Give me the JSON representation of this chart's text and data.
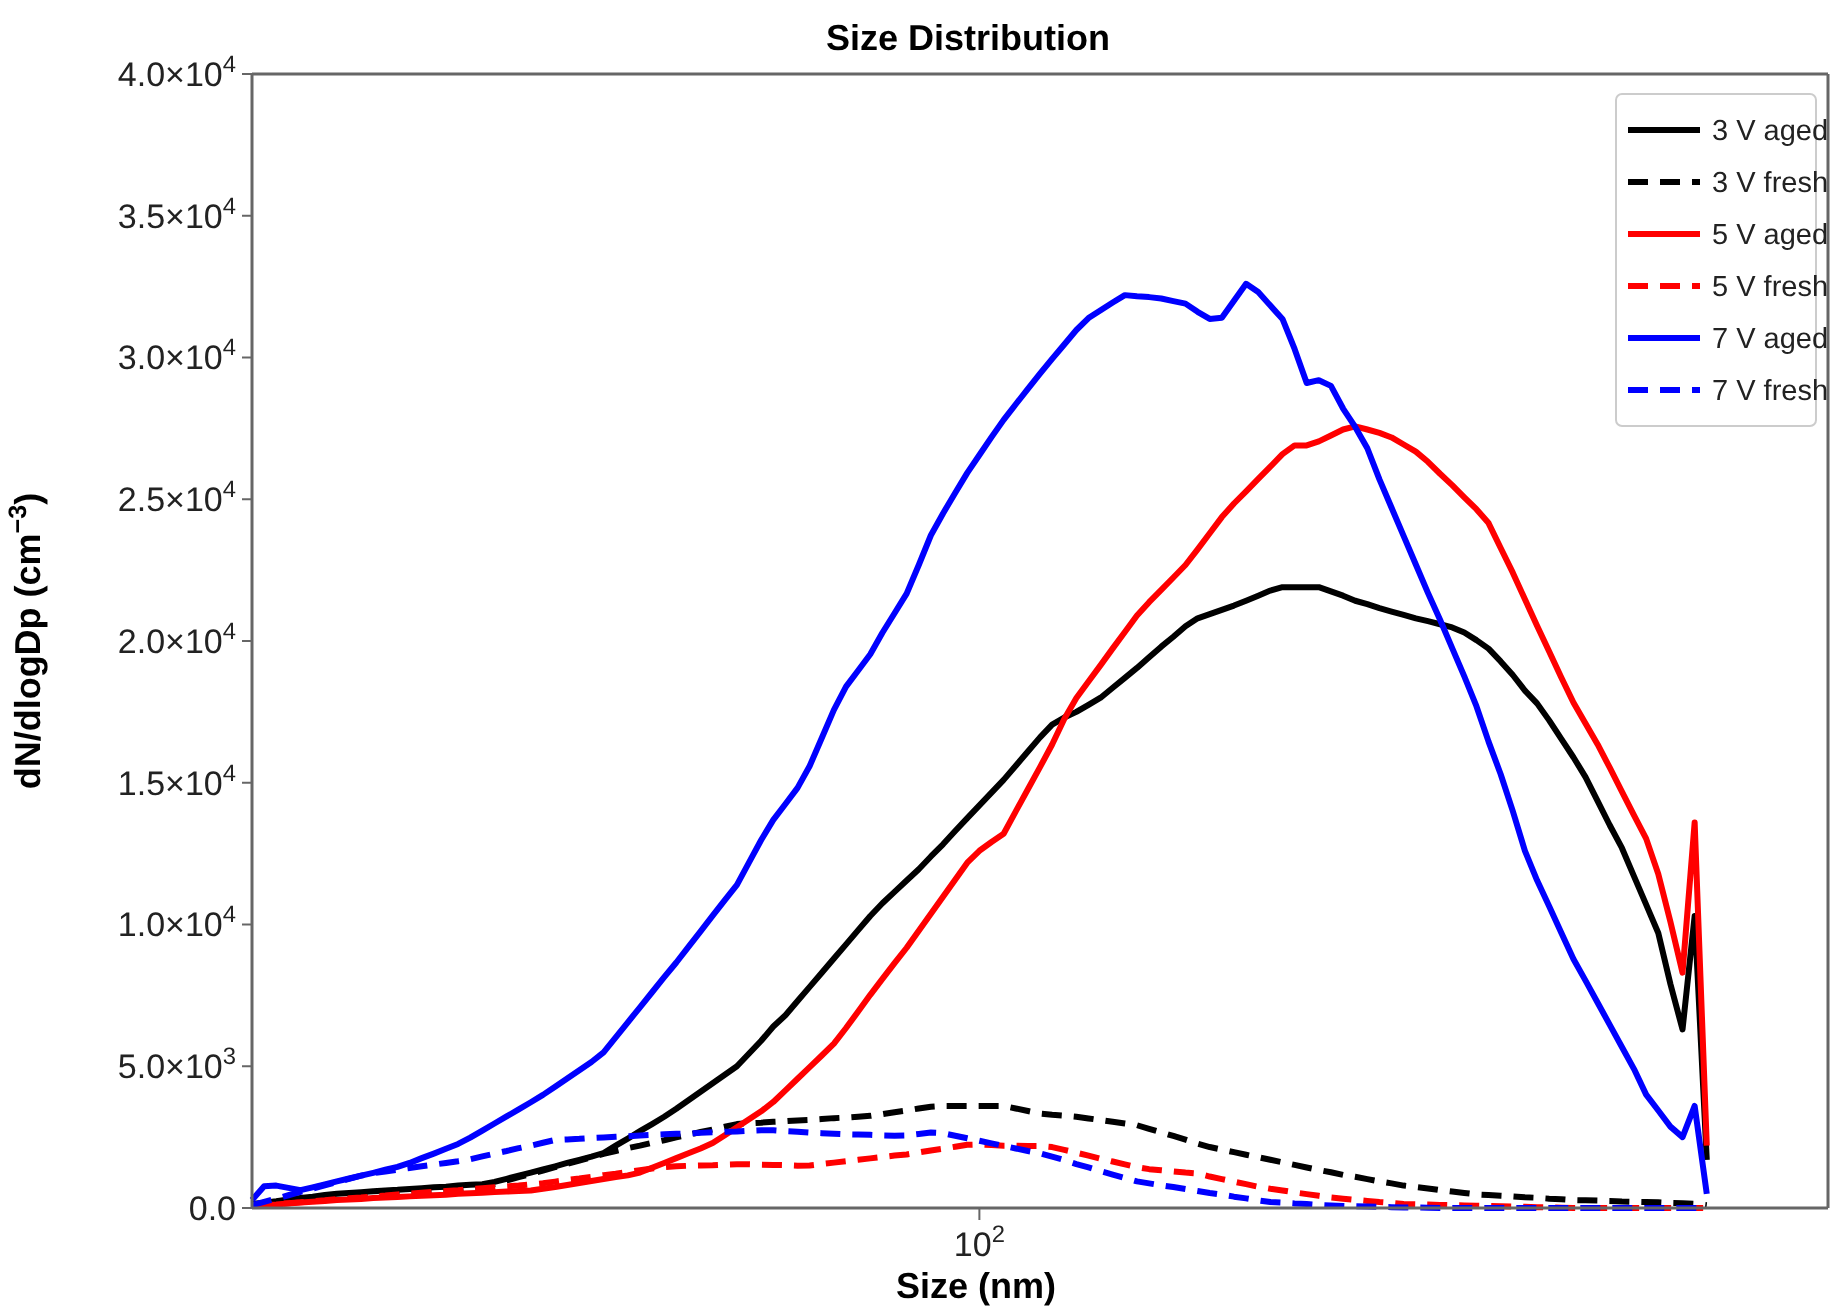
{
  "chart_data": {
    "type": "line",
    "title": "Size Distribution",
    "xlabel": "Size (nm)",
    "ylabel": "dN/dlogDp (cm$^{−3}$)",
    "categories": [
      null,
      null,
      null,
      null,
      null,
      null,
      null,
      null,
      null,
      null,
      null,
      null,
      null,
      null,
      null,
      null,
      null,
      null,
      null,
      null,
      null,
      null,
      null,
      null,
      null,
      null,
      null,
      null,
      null,
      null,
      null,
      null,
      null,
      null,
      null,
      null,
      null,
      null,
      null,
      null,
      null,
      null,
      null,
      null,
      null,
      null,
      null,
      null,
      null,
      null,
      null,
      null,
      null,
      null,
      null,
      null,
      null,
      null,
      null,
      null,
      "10$^{2}$",
      null,
      null,
      null,
      null,
      null,
      null,
      null,
      null,
      null,
      null,
      null,
      null,
      null,
      null,
      null,
      null,
      null,
      null,
      null,
      null,
      null,
      null,
      null,
      null,
      null,
      null,
      null,
      null,
      null,
      null,
      null,
      null,
      null,
      null,
      null,
      null,
      null,
      null,
      null,
      null,
      null,
      null,
      null,
      null,
      null,
      null,
      null,
      null,
      null,
      null,
      null,
      null,
      null,
      null,
      null,
      null,
      null,
      null,
      null,
      null,
      null,
      null,
      null,
      null,
      null,
      null,
      null,
      null,
      null,
      null
    ],
    "ylim": [
      0,
      40000
    ],
    "yticks": [
      {
        "value": 0,
        "label": "0.0"
      },
      {
        "value": 5000,
        "label": "5.0×10$^{3}$"
      },
      {
        "value": 10000,
        "label": "1.0×10$^{4}$"
      },
      {
        "value": 15000,
        "label": "1.5×10$^{4}$"
      },
      {
        "value": 20000,
        "label": "2.0×10$^{4}$"
      },
      {
        "value": 25000,
        "label": "2.5×10$^{4}$"
      },
      {
        "value": 30000,
        "label": "3.0×10$^{4}$"
      },
      {
        "value": 35000,
        "label": "3.5×10$^{4}$"
      },
      {
        "value": 40000,
        "label": "4.0×10$^{4}$"
      }
    ],
    "grid": false,
    "legend": "top right",
    "series": [
      {
        "name": "3 V aged",
        "color": "#000000",
        "line_style": "solid",
        "values": [
          140,
          190,
          240,
          300,
          350,
          400,
          460,
          500,
          530,
          560,
          590,
          620,
          640,
          670,
          700,
          730,
          750,
          790,
          820,
          840,
          920,
          1030,
          1140,
          1250,
          1360,
          1470,
          1590,
          1700,
          1810,
          1940,
          2200,
          2450,
          2710,
          2960,
          3220,
          3500,
          3800,
          4100,
          4400,
          4700,
          5000,
          5450,
          5900,
          6400,
          6800,
          7300,
          7800,
          8300,
          8800,
          9300,
          9800,
          10300,
          10750,
          11150,
          11550,
          11950,
          12400,
          12830,
          13300,
          13750,
          14200,
          14650,
          15100,
          15600,
          16100,
          16600,
          17050,
          17300,
          17500,
          17750,
          18000,
          18350,
          18700,
          19050,
          19430,
          19800,
          20150,
          20520,
          20800,
          20950,
          21100,
          21250,
          21420,
          21600,
          21780,
          21900,
          21900,
          21900,
          21900,
          21750,
          21600,
          21420,
          21300,
          21160,
          21040,
          20920,
          20800,
          20700,
          20590,
          20480,
          20300,
          20030,
          19730,
          19280,
          18800,
          18250,
          17800,
          17200,
          16550,
          15900,
          15200,
          14350,
          13500,
          12700,
          11700,
          10700,
          9700,
          7900,
          6300,
          10300,
          1700,
          null,
          null,
          null,
          null,
          null,
          null,
          null,
          null,
          null,
          null
        ]
      },
      {
        "name": "3 V fresh",
        "color": "#000000",
        "line_style": "dashed",
        "values": [
          100,
          130,
          170,
          200,
          230,
          260,
          300,
          330,
          370,
          400,
          440,
          470,
          510,
          540,
          580,
          620,
          650,
          690,
          730,
          760,
          850,
          970,
          1090,
          1200,
          1320,
          1440,
          1560,
          1670,
          1790,
          1910,
          2010,
          2110,
          2200,
          2300,
          2390,
          2490,
          2580,
          2680,
          2770,
          2870,
          2960,
          2990,
          3010,
          3040,
          3060,
          3090,
          3110,
          3140,
          3170,
          3190,
          3220,
          3250,
          3310,
          3380,
          3440,
          3510,
          3570,
          3600,
          3600,
          3600,
          3600,
          3600,
          3600,
          3510,
          3420,
          3330,
          3290,
          3260,
          3220,
          3160,
          3100,
          3040,
          2980,
          2920,
          2790,
          2670,
          2540,
          2410,
          2270,
          2150,
          2060,
          1970,
          1880,
          1790,
          1700,
          1610,
          1520,
          1430,
          1340,
          1260,
          1170,
          1100,
          1020,
          940,
          870,
          790,
          740,
          690,
          630,
          580,
          530,
          480,
          460,
          430,
          410,
          380,
          360,
          330,
          310,
          280,
          270,
          260,
          250,
          230,
          220,
          210,
          200,
          180,
          170,
          150,
          100,
          null,
          null,
          null,
          null,
          null,
          null,
          null,
          null,
          null,
          null
        ]
      },
      {
        "name": "5 V aged",
        "color": "#ff0000",
        "line_style": "solid",
        "values": [
          70,
          100,
          120,
          160,
          190,
          220,
          250,
          280,
          300,
          320,
          350,
          370,
          390,
          410,
          430,
          450,
          470,
          500,
          520,
          540,
          560,
          580,
          600,
          620,
          680,
          740,
          810,
          880,
          950,
          1020,
          1090,
          1150,
          1250,
          1420,
          1590,
          1760,
          1930,
          2100,
          2290,
          2570,
          2850,
          3130,
          3410,
          3740,
          4150,
          4560,
          4970,
          5380,
          5800,
          6350,
          6930,
          7520,
          8080,
          8640,
          9180,
          9780,
          10380,
          10980,
          11580,
          12180,
          12600,
          12910,
          13200,
          13990,
          14770,
          15550,
          16350,
          17250,
          17990,
          18570,
          19150,
          19740,
          20320,
          20900,
          21370,
          21800,
          22240,
          22680,
          23230,
          23800,
          24370,
          24850,
          25280,
          25720,
          26150,
          26590,
          26900,
          26900,
          27040,
          27250,
          27460,
          27570,
          27460,
          27340,
          27180,
          26930,
          26680,
          26320,
          25900,
          25500,
          25070,
          24650,
          24160,
          23280,
          22410,
          21470,
          20540,
          19630,
          18710,
          17830,
          17090,
          16350,
          15530,
          14690,
          13850,
          13030,
          11780,
          10100,
          8300,
          13600,
          2200,
          null,
          null,
          null,
          null,
          null,
          null,
          null,
          null,
          null,
          null
        ]
      },
      {
        "name": "5 V fresh",
        "color": "#ff0000",
        "line_style": "dashed",
        "values": [
          70,
          100,
          140,
          170,
          200,
          240,
          270,
          310,
          340,
          370,
          410,
          440,
          480,
          510,
          540,
          570,
          600,
          630,
          670,
          700,
          730,
          760,
          790,
          830,
          870,
          930,
          990,
          1040,
          1100,
          1160,
          1210,
          1270,
          1330,
          1390,
          1440,
          1470,
          1490,
          1500,
          1510,
          1530,
          1540,
          1540,
          1530,
          1520,
          1510,
          1490,
          1500,
          1550,
          1600,
          1650,
          1700,
          1750,
          1800,
          1850,
          1890,
          1960,
          2030,
          2090,
          2160,
          2230,
          2240,
          2220,
          2200,
          2200,
          2190,
          2190,
          2150,
          2050,
          1950,
          1850,
          1740,
          1640,
          1540,
          1440,
          1370,
          1330,
          1290,
          1250,
          1220,
          1110,
          1020,
          930,
          840,
          750,
          680,
          620,
          550,
          490,
          430,
          370,
          330,
          290,
          250,
          210,
          180,
          140,
          130,
          120,
          110,
          100,
          90,
          80,
          70,
          60,
          50,
          40,
          30,
          20,
          10,
          0,
          0,
          0,
          0,
          0,
          0,
          0,
          0,
          0,
          0,
          0,
          0,
          null,
          null,
          null,
          null,
          null,
          null,
          null,
          null,
          null,
          null
        ]
      },
      {
        "name": "7 V aged",
        "color": "#0000ff",
        "line_style": "solid",
        "values": [
          280,
          770,
          790,
          710,
          630,
          730,
          830,
          940,
          1040,
          1140,
          1240,
          1350,
          1450,
          1590,
          1760,
          1920,
          2090,
          2260,
          2480,
          2730,
          2980,
          3230,
          3480,
          3730,
          3990,
          4280,
          4570,
          4860,
          5150,
          5490,
          6020,
          6550,
          7080,
          7610,
          8140,
          8660,
          9210,
          9760,
          10310,
          10860,
          11400,
          12190,
          12980,
          13690,
          14250,
          14820,
          15590,
          16580,
          17570,
          18390,
          18960,
          19530,
          20290,
          20980,
          21670,
          22680,
          23730,
          24500,
          25220,
          25930,
          26560,
          27190,
          27800,
          28350,
          28890,
          29430,
          29950,
          30460,
          30970,
          31390,
          31670,
          31940,
          32200,
          32160,
          32130,
          32080,
          31990,
          31900,
          31610,
          31360,
          31400,
          32000,
          32600,
          32310,
          31830,
          31360,
          30300,
          29100,
          29200,
          29000,
          28200,
          27550,
          26800,
          25700,
          24700,
          23700,
          22700,
          21700,
          20750,
          19750,
          18750,
          17700,
          16450,
          15300,
          14000,
          12600,
          11560,
          10640,
          9710,
          8780,
          8020,
          7240,
          6460,
          5680,
          4900,
          4000,
          3440,
          2870,
          2500,
          3600,
          500,
          null,
          null,
          null,
          null,
          null,
          null,
          null,
          null,
          null,
          null
        ]
      },
      {
        "name": "7 V fresh",
        "color": "#0000ff",
        "line_style": "dashed",
        "values": [
          100,
          220,
          330,
          450,
          570,
          680,
          800,
          910,
          1030,
          1140,
          1230,
          1290,
          1350,
          1410,
          1470,
          1530,
          1590,
          1650,
          1720,
          1820,
          1920,
          2010,
          2110,
          2200,
          2300,
          2400,
          2420,
          2440,
          2470,
          2490,
          2510,
          2530,
          2560,
          2580,
          2600,
          2620,
          2630,
          2650,
          2670,
          2690,
          2700,
          2720,
          2740,
          2740,
          2710,
          2690,
          2660,
          2640,
          2620,
          2600,
          2590,
          2580,
          2560,
          2550,
          2560,
          2610,
          2660,
          2640,
          2550,
          2460,
          2370,
          2280,
          2190,
          2100,
          2010,
          1930,
          1810,
          1690,
          1550,
          1430,
          1300,
          1180,
          1060,
          940,
          870,
          800,
          740,
          670,
          600,
          530,
          470,
          400,
          340,
          270,
          210,
          190,
          160,
          140,
          110,
          90,
          70,
          60,
          50,
          40,
          30,
          20,
          20,
          10,
          0,
          0,
          0,
          0,
          0,
          0,
          0,
          0,
          0,
          0,
          0,
          0,
          0,
          0,
          0,
          0,
          0,
          0,
          0,
          0,
          0,
          0,
          0,
          null,
          null,
          null,
          null,
          null,
          null,
          null,
          null,
          null,
          null
        ]
      }
    ]
  }
}
